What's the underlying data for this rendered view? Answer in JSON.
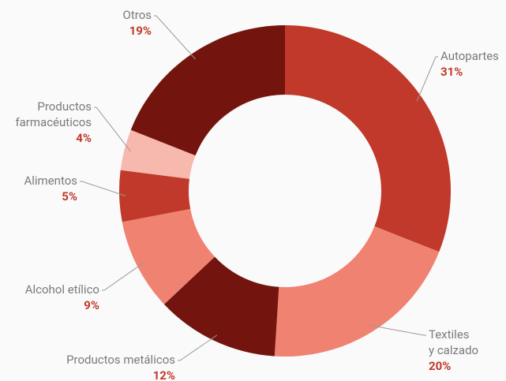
{
  "chart_data": {
    "type": "donut",
    "categories": [
      "Autopartes",
      "Textiles\ny calzado",
      "Productos metálicos",
      "Alcohol etílico",
      "Alimentos",
      "Productos\nfarmacéuticos",
      "Otros"
    ],
    "values": [
      31,
      20,
      12,
      9,
      5,
      4,
      19
    ],
    "value_labels": [
      "31%",
      "20%",
      "12%",
      "9%",
      "5%",
      "4%",
      "19%"
    ],
    "colors": [
      "#c0392b",
      "#f08272",
      "#73150e",
      "#f08272",
      "#c0392b",
      "#f7b8ad",
      "#73150e"
    ]
  }
}
